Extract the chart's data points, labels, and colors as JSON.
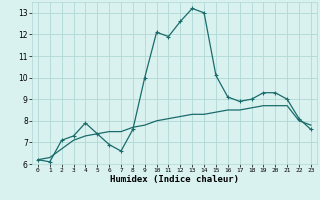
{
  "xlabel": "Humidex (Indice chaleur)",
  "x_values": [
    0,
    1,
    2,
    3,
    4,
    5,
    6,
    7,
    8,
    9,
    10,
    11,
    12,
    13,
    14,
    15,
    16,
    17,
    18,
    19,
    20,
    21,
    22,
    23
  ],
  "line1_y": [
    6.2,
    6.1,
    7.1,
    7.3,
    7.9,
    7.4,
    6.9,
    6.6,
    7.6,
    10.0,
    12.1,
    11.9,
    12.6,
    13.2,
    13.0,
    10.1,
    9.1,
    8.9,
    9.0,
    9.3,
    9.3,
    9.0,
    8.1,
    7.6
  ],
  "line2_y": [
    6.2,
    6.3,
    6.7,
    7.1,
    7.3,
    7.4,
    7.5,
    7.5,
    7.7,
    7.8,
    8.0,
    8.1,
    8.2,
    8.3,
    8.3,
    8.4,
    8.5,
    8.5,
    8.6,
    8.7,
    8.7,
    8.7,
    8.0,
    7.8
  ],
  "line_color": "#1a6b6b",
  "bg_color": "#d9f2f0",
  "grid_color": "#b0d8d5",
  "ylim": [
    6,
    13.5
  ],
  "yticks": [
    6,
    7,
    8,
    9,
    10,
    11,
    12,
    13
  ],
  "xlim": [
    -0.5,
    23.5
  ],
  "xticks": [
    0,
    1,
    2,
    3,
    4,
    5,
    6,
    7,
    8,
    9,
    10,
    11,
    12,
    13,
    14,
    15,
    16,
    17,
    18,
    19,
    20,
    21,
    22,
    23
  ]
}
